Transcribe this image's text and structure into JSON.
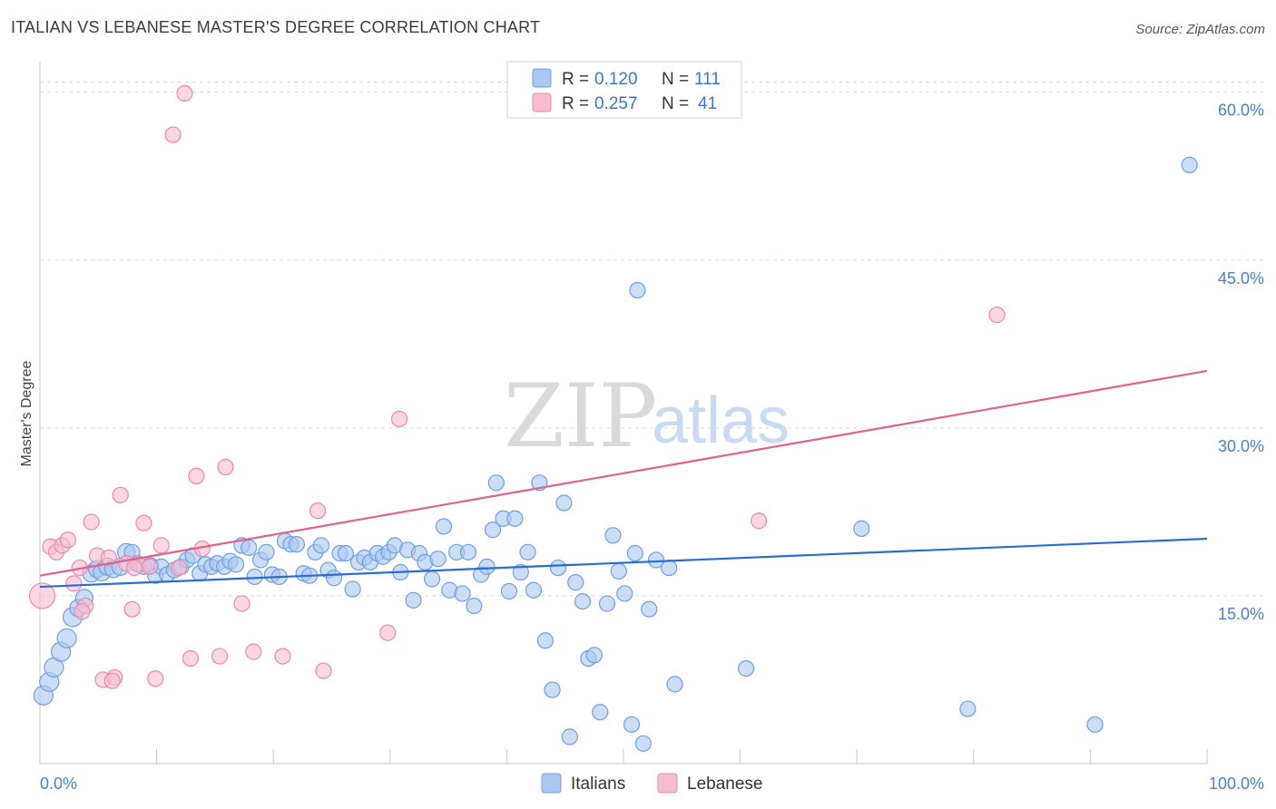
{
  "title": "ITALIAN VS LEBANESE MASTER'S DEGREE CORRELATION CHART",
  "source": "Source: ZipAtlas.com",
  "watermark": {
    "part1": "ZIP",
    "part2": "atlas"
  },
  "colors": {
    "italians_fill": "#aac8f0",
    "italians_stroke": "#6f9ee0",
    "italians_line": "#2a6dcc",
    "lebanese_fill": "#f6bcd0",
    "lebanese_stroke": "#e88aaa",
    "lebanese_line": "#e0608e",
    "grid": "#d8d8d8",
    "axis_text": "#4a7ed0"
  },
  "legend": {
    "rows": [
      {
        "r_label": "R =",
        "r_value": "0.120",
        "n_label": "N =",
        "n_value": "111"
      },
      {
        "r_label": "R =",
        "r_value": "0.257",
        "n_label": "N =",
        "n_value": "41"
      }
    ]
  },
  "bottom_legend": {
    "italians": "Italians",
    "lebanese": "Lebanese"
  },
  "chart_data": {
    "type": "scatter",
    "title": "ITALIAN VS LEBANESE MASTER'S DEGREE CORRELATION CHART",
    "xlabel": "",
    "ylabel": "Master's Degree",
    "xlim": [
      0,
      100
    ],
    "ylim": [
      0,
      62
    ],
    "x_tick_labels": [
      "0.0%",
      "100.0%"
    ],
    "y_ticks": [
      15,
      30,
      45,
      60
    ],
    "y_tick_labels": [
      "15.0%",
      "30.0%",
      "45.0%",
      "60.0%"
    ],
    "legend_position": "top-center",
    "series": [
      {
        "name": "Italians",
        "r": 0.12,
        "n": 111,
        "trend": {
          "x": [
            0,
            100
          ],
          "y": [
            15.8,
            20.1
          ]
        },
        "points": [
          {
            "x": 0.3,
            "y": 6.1,
            "s": 3
          },
          {
            "x": 0.8,
            "y": 7.3,
            "s": 3
          },
          {
            "x": 1.2,
            "y": 8.6,
            "s": 3
          },
          {
            "x": 1.8,
            "y": 10.0,
            "s": 3
          },
          {
            "x": 2.3,
            "y": 11.2,
            "s": 3
          },
          {
            "x": 2.8,
            "y": 13.1,
            "s": 3
          },
          {
            "x": 3.3,
            "y": 13.9,
            "s": 2
          },
          {
            "x": 3.8,
            "y": 14.8,
            "s": 2
          },
          {
            "x": 4.4,
            "y": 17.0,
            "s": 2
          },
          {
            "x": 4.9,
            "y": 17.4,
            "s": 2
          },
          {
            "x": 5.3,
            "y": 17.1,
            "s": 2
          },
          {
            "x": 5.8,
            "y": 17.6,
            "s": 2
          },
          {
            "x": 6.3,
            "y": 17.4,
            "s": 2
          },
          {
            "x": 6.9,
            "y": 17.6,
            "s": 2
          },
          {
            "x": 7.4,
            "y": 18.9,
            "s": 2
          },
          {
            "x": 7.9,
            "y": 18.9,
            "s": 1
          },
          {
            "x": 8.4,
            "y": 17.8,
            "s": 1
          },
          {
            "x": 8.9,
            "y": 17.6,
            "s": 1
          },
          {
            "x": 9.5,
            "y": 17.7,
            "s": 1
          },
          {
            "x": 9.9,
            "y": 16.8,
            "s": 1
          },
          {
            "x": 10.4,
            "y": 17.6,
            "s": 1
          },
          {
            "x": 10.9,
            "y": 16.9,
            "s": 1
          },
          {
            "x": 11.5,
            "y": 17.3,
            "s": 1
          },
          {
            "x": 12.1,
            "y": 17.6,
            "s": 1
          },
          {
            "x": 12.6,
            "y": 18.2,
            "s": 1
          },
          {
            "x": 13.1,
            "y": 18.6,
            "s": 1
          },
          {
            "x": 13.7,
            "y": 17.0,
            "s": 1
          },
          {
            "x": 14.2,
            "y": 17.8,
            "s": 1
          },
          {
            "x": 14.7,
            "y": 17.6,
            "s": 1
          },
          {
            "x": 15.2,
            "y": 17.9,
            "s": 1
          },
          {
            "x": 15.8,
            "y": 17.6,
            "s": 1
          },
          {
            "x": 16.3,
            "y": 18.1,
            "s": 1
          },
          {
            "x": 16.8,
            "y": 17.8,
            "s": 1
          },
          {
            "x": 17.3,
            "y": 19.5,
            "s": 1
          },
          {
            "x": 17.9,
            "y": 19.3,
            "s": 1
          },
          {
            "x": 18.4,
            "y": 16.7,
            "s": 1
          },
          {
            "x": 18.9,
            "y": 18.2,
            "s": 1
          },
          {
            "x": 19.4,
            "y": 18.9,
            "s": 1
          },
          {
            "x": 19.9,
            "y": 16.9,
            "s": 1
          },
          {
            "x": 20.5,
            "y": 16.7,
            "s": 1
          },
          {
            "x": 21.0,
            "y": 19.9,
            "s": 1
          },
          {
            "x": 21.5,
            "y": 19.6,
            "s": 1
          },
          {
            "x": 22.0,
            "y": 19.6,
            "s": 1
          },
          {
            "x": 22.6,
            "y": 17.0,
            "s": 1
          },
          {
            "x": 23.1,
            "y": 16.8,
            "s": 1
          },
          {
            "x": 23.6,
            "y": 18.9,
            "s": 1
          },
          {
            "x": 24.1,
            "y": 19.5,
            "s": 1
          },
          {
            "x": 24.7,
            "y": 17.3,
            "s": 1
          },
          {
            "x": 25.2,
            "y": 16.6,
            "s": 1
          },
          {
            "x": 25.7,
            "y": 18.8,
            "s": 1
          },
          {
            "x": 26.2,
            "y": 18.8,
            "s": 1
          },
          {
            "x": 26.8,
            "y": 15.6,
            "s": 1
          },
          {
            "x": 27.3,
            "y": 18.0,
            "s": 1
          },
          {
            "x": 27.8,
            "y": 18.4,
            "s": 1
          },
          {
            "x": 28.3,
            "y": 18.0,
            "s": 1
          },
          {
            "x": 28.9,
            "y": 18.8,
            "s": 1
          },
          {
            "x": 29.4,
            "y": 18.5,
            "s": 1
          },
          {
            "x": 29.9,
            "y": 18.9,
            "s": 1
          },
          {
            "x": 30.4,
            "y": 19.5,
            "s": 1
          },
          {
            "x": 30.9,
            "y": 17.1,
            "s": 1
          },
          {
            "x": 31.5,
            "y": 19.1,
            "s": 1
          },
          {
            "x": 32.0,
            "y": 14.6,
            "s": 1
          },
          {
            "x": 32.5,
            "y": 18.8,
            "s": 1
          },
          {
            "x": 33.0,
            "y": 18.0,
            "s": 1
          },
          {
            "x": 33.6,
            "y": 16.5,
            "s": 1
          },
          {
            "x": 34.1,
            "y": 18.3,
            "s": 1
          },
          {
            "x": 34.6,
            "y": 21.2,
            "s": 1
          },
          {
            "x": 35.1,
            "y": 15.5,
            "s": 1
          },
          {
            "x": 35.7,
            "y": 18.9,
            "s": 1
          },
          {
            "x": 36.2,
            "y": 15.2,
            "s": 1
          },
          {
            "x": 36.7,
            "y": 18.9,
            "s": 1
          },
          {
            "x": 37.2,
            "y": 14.1,
            "s": 1
          },
          {
            "x": 37.8,
            "y": 16.9,
            "s": 1
          },
          {
            "x": 38.3,
            "y": 17.6,
            "s": 1
          },
          {
            "x": 38.8,
            "y": 20.9,
            "s": 1
          },
          {
            "x": 39.1,
            "y": 25.1,
            "s": 1
          },
          {
            "x": 39.7,
            "y": 21.9,
            "s": 1
          },
          {
            "x": 40.2,
            "y": 15.4,
            "s": 1
          },
          {
            "x": 40.7,
            "y": 21.9,
            "s": 1
          },
          {
            "x": 41.2,
            "y": 17.1,
            "s": 1
          },
          {
            "x": 41.8,
            "y": 18.9,
            "s": 1
          },
          {
            "x": 42.3,
            "y": 15.5,
            "s": 1
          },
          {
            "x": 42.8,
            "y": 25.1,
            "s": 1
          },
          {
            "x": 43.3,
            "y": 11.0,
            "s": 1
          },
          {
            "x": 43.9,
            "y": 6.6,
            "s": 1
          },
          {
            "x": 44.4,
            "y": 17.5,
            "s": 1
          },
          {
            "x": 44.9,
            "y": 23.3,
            "s": 1
          },
          {
            "x": 45.4,
            "y": 2.4,
            "s": 1
          },
          {
            "x": 45.9,
            "y": 16.2,
            "s": 1
          },
          {
            "x": 46.5,
            "y": 14.5,
            "s": 1
          },
          {
            "x": 47.0,
            "y": 9.4,
            "s": 1
          },
          {
            "x": 47.5,
            "y": 9.7,
            "s": 1
          },
          {
            "x": 48.0,
            "y": 4.6,
            "s": 1
          },
          {
            "x": 48.6,
            "y": 14.3,
            "s": 1
          },
          {
            "x": 49.1,
            "y": 20.4,
            "s": 1
          },
          {
            "x": 49.6,
            "y": 17.2,
            "s": 1
          },
          {
            "x": 50.1,
            "y": 15.2,
            "s": 1
          },
          {
            "x": 50.7,
            "y": 3.5,
            "s": 1
          },
          {
            "x": 51.2,
            "y": 42.3,
            "s": 1
          },
          {
            "x": 51.7,
            "y": 1.8,
            "s": 1
          },
          {
            "x": 52.2,
            "y": 13.8,
            "s": 1
          },
          {
            "x": 52.8,
            "y": 18.2,
            "s": 1
          },
          {
            "x": 53.9,
            "y": 17.5,
            "s": 1
          },
          {
            "x": 54.4,
            "y": 7.1,
            "s": 1
          },
          {
            "x": 60.5,
            "y": 8.5,
            "s": 1
          },
          {
            "x": 70.4,
            "y": 21.0,
            "s": 1
          },
          {
            "x": 79.5,
            "y": 4.9,
            "s": 1
          },
          {
            "x": 90.4,
            "y": 3.5,
            "s": 1
          },
          {
            "x": 98.5,
            "y": 53.5,
            "s": 1
          },
          {
            "x": 51.0,
            "y": 18.8,
            "s": 1
          }
        ]
      },
      {
        "name": "Lebanese",
        "r": 0.257,
        "n": 41,
        "trend": {
          "x": [
            0,
            100
          ],
          "y": [
            16.8,
            35.1
          ]
        },
        "points": [
          {
            "x": 0.2,
            "y": 15.0,
            "s": 4
          },
          {
            "x": 0.9,
            "y": 19.4,
            "s": 1
          },
          {
            "x": 1.4,
            "y": 18.9,
            "s": 1
          },
          {
            "x": 1.9,
            "y": 19.5,
            "s": 1
          },
          {
            "x": 2.4,
            "y": 20.0,
            "s": 1
          },
          {
            "x": 2.9,
            "y": 16.1,
            "s": 1
          },
          {
            "x": 3.4,
            "y": 17.5,
            "s": 1
          },
          {
            "x": 3.9,
            "y": 14.1,
            "s": 1
          },
          {
            "x": 4.4,
            "y": 21.6,
            "s": 1
          },
          {
            "x": 4.9,
            "y": 18.6,
            "s": 1
          },
          {
            "x": 5.4,
            "y": 7.5,
            "s": 1
          },
          {
            "x": 5.9,
            "y": 18.4,
            "s": 1
          },
          {
            "x": 6.4,
            "y": 7.7,
            "s": 1
          },
          {
            "x": 6.9,
            "y": 24.0,
            "s": 1
          },
          {
            "x": 7.4,
            "y": 17.9,
            "s": 1
          },
          {
            "x": 7.9,
            "y": 13.8,
            "s": 1
          },
          {
            "x": 8.4,
            "y": 17.9,
            "s": 1
          },
          {
            "x": 8.9,
            "y": 21.5,
            "s": 1
          },
          {
            "x": 9.4,
            "y": 17.6,
            "s": 1
          },
          {
            "x": 9.9,
            "y": 7.6,
            "s": 1
          },
          {
            "x": 10.4,
            "y": 19.5,
            "s": 1
          },
          {
            "x": 11.4,
            "y": 56.2,
            "s": 1
          },
          {
            "x": 11.9,
            "y": 17.5,
            "s": 1
          },
          {
            "x": 12.4,
            "y": 59.9,
            "s": 1
          },
          {
            "x": 12.9,
            "y": 9.4,
            "s": 1
          },
          {
            "x": 13.4,
            "y": 25.7,
            "s": 1
          },
          {
            "x": 13.9,
            "y": 19.2,
            "s": 1
          },
          {
            "x": 15.4,
            "y": 9.6,
            "s": 1
          },
          {
            "x": 15.9,
            "y": 26.5,
            "s": 1
          },
          {
            "x": 17.3,
            "y": 14.3,
            "s": 1
          },
          {
            "x": 18.3,
            "y": 10.0,
            "s": 1
          },
          {
            "x": 20.8,
            "y": 9.6,
            "s": 1
          },
          {
            "x": 23.8,
            "y": 22.6,
            "s": 1
          },
          {
            "x": 24.3,
            "y": 8.3,
            "s": 1
          },
          {
            "x": 29.8,
            "y": 11.7,
            "s": 1
          },
          {
            "x": 30.8,
            "y": 30.8,
            "s": 1
          },
          {
            "x": 61.6,
            "y": 21.7,
            "s": 1
          },
          {
            "x": 82.0,
            "y": 40.1,
            "s": 1
          },
          {
            "x": 6.2,
            "y": 7.4,
            "s": 1
          },
          {
            "x": 3.6,
            "y": 13.6,
            "s": 1
          },
          {
            "x": 8.1,
            "y": 17.5,
            "s": 1
          }
        ]
      }
    ]
  }
}
